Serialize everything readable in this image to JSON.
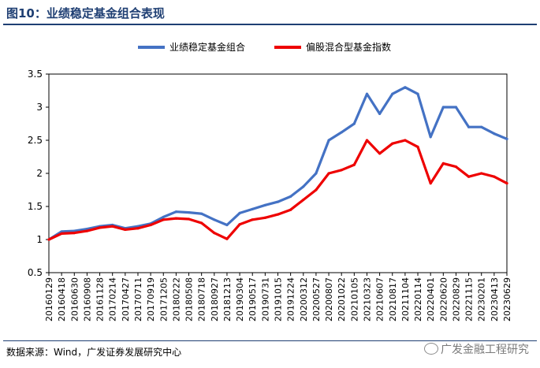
{
  "page": {
    "figure_title": "图10：业绩稳定基金组合表现",
    "source": "数据来源：Wind，广发证券发展研究中心",
    "watermark": "广发金融工程研究"
  },
  "chart_data": {
    "type": "line",
    "title": "",
    "xlabel": "",
    "ylabel": "",
    "ylim": [
      0.5,
      3.5
    ],
    "yticks": [
      "0.5",
      "1",
      "1.5",
      "2",
      "2.5",
      "3",
      "3.5"
    ],
    "grid": false,
    "legend_position": "top",
    "x_ticks": [
      "20160129",
      "20160418",
      "20160630",
      "20160908",
      "20161128",
      "20170214",
      "20170427",
      "20170711",
      "20170919",
      "20171205",
      "20180222",
      "20180508",
      "20180718",
      "20180927",
      "20181213",
      "20190304",
      "20190517",
      "20190731",
      "20191015",
      "20191224",
      "20200312",
      "20200527",
      "20200807",
      "20201022",
      "20210105",
      "20210323",
      "20210607",
      "20210817",
      "20211104",
      "20220114",
      "20220401",
      "20220620",
      "20220829",
      "20221115",
      "20230201",
      "20230413",
      "20230629"
    ],
    "series": [
      {
        "name": "业绩稳定基金组合",
        "color": "#4472c4",
        "values": [
          1.0,
          1.12,
          1.13,
          1.16,
          1.2,
          1.22,
          1.17,
          1.2,
          1.24,
          1.34,
          1.42,
          1.41,
          1.39,
          1.3,
          1.22,
          1.4,
          1.46,
          1.52,
          1.57,
          1.65,
          1.8,
          2.0,
          2.5,
          2.62,
          2.75,
          3.2,
          2.9,
          3.2,
          3.3,
          3.2,
          2.55,
          3.0,
          3.0,
          2.7,
          2.7,
          2.6,
          2.52
        ]
      },
      {
        "name": "偏股混合型基金指数",
        "color": "#ee0000",
        "values": [
          1.0,
          1.09,
          1.1,
          1.13,
          1.18,
          1.2,
          1.15,
          1.17,
          1.22,
          1.3,
          1.32,
          1.31,
          1.25,
          1.1,
          1.01,
          1.23,
          1.3,
          1.33,
          1.38,
          1.45,
          1.6,
          1.75,
          2.0,
          2.05,
          2.13,
          2.5,
          2.3,
          2.45,
          2.5,
          2.4,
          1.85,
          2.15,
          2.1,
          1.95,
          2.0,
          1.95,
          1.85
        ]
      }
    ]
  }
}
